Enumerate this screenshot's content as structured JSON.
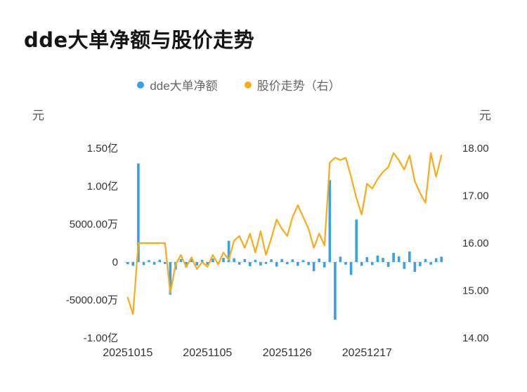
{
  "title": "dde大单净额与股价走势",
  "legend": [
    {
      "label": "dde大单净额",
      "color": "#3aa1e8"
    },
    {
      "label": "股价走势（右）",
      "color": "#fbab18"
    }
  ],
  "axis_units": {
    "left": "元",
    "right": "元"
  },
  "chart_data": {
    "type": "bar",
    "subtype": "bar+line combo, dual y-axis",
    "title": "dde大单净额与股价走势",
    "legend_position": "top-center",
    "x_ticks": [
      {
        "index": 0,
        "label": "20251015"
      },
      {
        "index": 15,
        "label": "20251105"
      },
      {
        "index": 30,
        "label": "20251126"
      },
      {
        "index": 45,
        "label": "20251217"
      }
    ],
    "left_axis": {
      "unit": "元",
      "min": -10000,
      "max": 15000,
      "values_unit": "万元",
      "ticks": [
        {
          "value": 15000,
          "label": "1.50亿"
        },
        {
          "value": 10000,
          "label": "1.00亿"
        },
        {
          "value": 5000,
          "label": "5000.00万"
        },
        {
          "value": 0,
          "label": "0"
        },
        {
          "value": -5000,
          "label": "-5000.00万"
        },
        {
          "value": -10000,
          "label": "-1.00亿"
        }
      ]
    },
    "right_axis": {
      "unit": "元",
      "min": 14,
      "max": 18,
      "ticks": [
        {
          "value": 18,
          "label": "18.00"
        },
        {
          "value": 17,
          "label": "17.00"
        },
        {
          "value": 16,
          "label": "16.00"
        },
        {
          "value": 15,
          "label": "15.00"
        },
        {
          "value": 14,
          "label": "14.00"
        }
      ]
    },
    "grid": {
      "zero_line": "dashed",
      "other_gridlines": false
    },
    "series": [
      {
        "name": "dde大单净额",
        "type": "bar",
        "axis": "left",
        "unit": "万元",
        "color": "#3aa1e8",
        "values": [
          -300,
          -500,
          13000,
          -400,
          250,
          -350,
          300,
          -250,
          -4300,
          -1000,
          400,
          -700,
          350,
          -450,
          300,
          -350,
          450,
          -300,
          550,
          2800,
          500,
          -350,
          400,
          -550,
          300,
          -450,
          -250,
          350,
          -600,
          400,
          -300,
          350,
          -500,
          250,
          -400,
          -1200,
          450,
          -700,
          10800,
          -7600,
          700,
          -350,
          -1700,
          5600,
          -500,
          650,
          -400,
          850,
          550,
          -650,
          1200,
          750,
          -900,
          1400,
          -1300,
          -550,
          400,
          -350,
          500,
          700
        ]
      },
      {
        "name": "股价走势（右）",
        "type": "line",
        "axis": "right",
        "unit": "元",
        "color": "#fbab18",
        "values": [
          14.85,
          14.5,
          16.0,
          16.0,
          16.0,
          16.0,
          16.0,
          16.0,
          14.95,
          15.55,
          15.75,
          15.5,
          15.7,
          15.45,
          15.6,
          15.5,
          15.75,
          15.55,
          15.8,
          15.65,
          16.05,
          16.15,
          15.9,
          16.2,
          15.8,
          16.25,
          15.75,
          16.1,
          16.5,
          16.3,
          16.15,
          16.55,
          16.8,
          16.55,
          16.3,
          15.9,
          16.2,
          15.95,
          17.7,
          17.8,
          17.75,
          17.8,
          17.4,
          16.95,
          16.6,
          17.25,
          17.15,
          17.35,
          17.5,
          17.6,
          17.9,
          17.75,
          17.55,
          17.85,
          17.3,
          17.05,
          16.85,
          17.9,
          17.4,
          17.85
        ]
      }
    ]
  }
}
